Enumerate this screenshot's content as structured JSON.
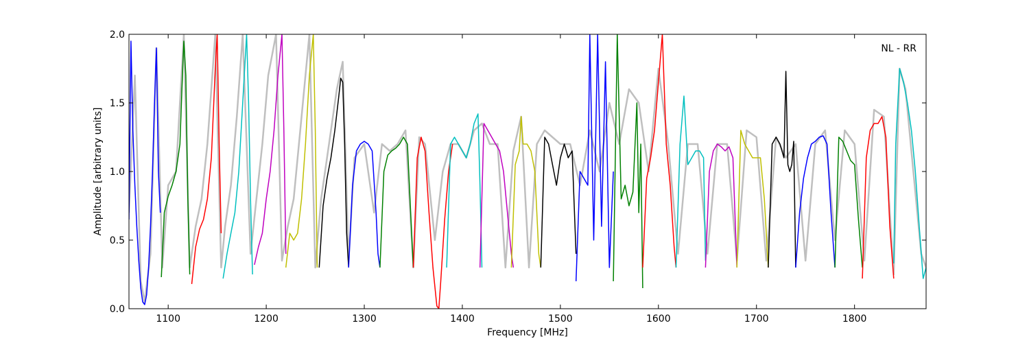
{
  "chart_data": {
    "type": "line",
    "xlabel": "Frequency [MHz]",
    "ylabel": "Amplitude [arbitrary units]",
    "annotation": "NL - RR",
    "xlim": [
      1060,
      1873
    ],
    "ylim": [
      0.0,
      2.0
    ],
    "x_ticks": [
      1100,
      1200,
      1300,
      1400,
      1500,
      1600,
      1700,
      1800
    ],
    "x_tick_labels": [
      "1100",
      "1200",
      "1300",
      "1400",
      "1500",
      "1600",
      "1700",
      "1800"
    ],
    "y_ticks": [
      0.0,
      0.5,
      1.0,
      1.5,
      2.0
    ],
    "y_tick_labels": [
      "0.0",
      "0.5",
      "1.0",
      "1.5",
      "2.0"
    ],
    "grid": false,
    "background_series": {
      "color": "#bfbfbf",
      "x": [
        1060,
        1066,
        1072,
        1076,
        1082,
        1088,
        1094,
        1100,
        1108,
        1116,
        1122,
        1128,
        1134,
        1140,
        1148,
        1154,
        1158,
        1164,
        1170,
        1176,
        1184,
        1190,
        1196,
        1202,
        1210,
        1216,
        1222,
        1228,
        1236,
        1244,
        1250,
        1256,
        1264,
        1272,
        1278,
        1284,
        1290,
        1300,
        1310,
        1318,
        1326,
        1334,
        1342,
        1350,
        1356,
        1362,
        1372,
        1380,
        1388,
        1396,
        1404,
        1412,
        1420,
        1428,
        1436,
        1444,
        1452,
        1460,
        1468,
        1476,
        1484,
        1492,
        1500,
        1510,
        1520,
        1530,
        1540,
        1550,
        1560,
        1570,
        1580,
        1590,
        1600,
        1610,
        1620,
        1630,
        1640,
        1650,
        1660,
        1670,
        1680,
        1690,
        1700,
        1710,
        1720,
        1730,
        1740,
        1750,
        1760,
        1770,
        1780,
        1790,
        1800,
        1810,
        1820,
        1830,
        1840,
        1846,
        1852,
        1860,
        1868,
        1873
      ],
      "y": [
        0.7,
        1.7,
        0.2,
        0.05,
        0.4,
        1.9,
        0.3,
        0.9,
        1.0,
        2.0,
        0.3,
        0.6,
        0.8,
        1.2,
        2.0,
        0.3,
        0.6,
        0.9,
        1.4,
        2.0,
        0.4,
        0.8,
        1.2,
        1.7,
        2.0,
        0.35,
        0.6,
        0.8,
        1.4,
        2.0,
        0.3,
        0.8,
        1.2,
        1.6,
        1.8,
        0.35,
        1.1,
        1.2,
        0.7,
        1.2,
        1.15,
        1.2,
        1.3,
        0.3,
        1.25,
        1.2,
        0.5,
        1.0,
        1.2,
        1.2,
        1.1,
        1.3,
        1.35,
        1.2,
        1.2,
        0.3,
        1.15,
        1.4,
        0.3,
        1.2,
        1.3,
        1.25,
        1.2,
        1.2,
        0.9,
        1.3,
        1.0,
        1.5,
        1.2,
        1.6,
        1.5,
        1.0,
        1.75,
        1.2,
        0.4,
        1.2,
        1.2,
        0.4,
        1.2,
        1.2,
        0.35,
        1.3,
        1.25,
        0.35,
        1.25,
        1.1,
        1.2,
        0.35,
        1.2,
        1.3,
        0.5,
        1.3,
        1.2,
        0.35,
        1.45,
        1.4,
        0.25,
        1.75,
        1.6,
        1.0,
        0.4,
        0.3
      ]
    },
    "series": [
      {
        "color": "#0000ff",
        "x": [
          1060,
          1062,
          1064,
          1066,
          1068,
          1070,
          1072,
          1074,
          1076,
          1078,
          1080,
          1082,
          1084,
          1086,
          1088,
          1090,
          1092
        ],
        "y": [
          0.65,
          1.95,
          1.3,
          0.9,
          0.6,
          0.35,
          0.15,
          0.05,
          0.03,
          0.1,
          0.3,
          0.6,
          1.0,
          1.5,
          1.9,
          1.0,
          0.7
        ]
      },
      {
        "color": "#008000",
        "x": [
          1093,
          1096,
          1100,
          1104,
          1108,
          1112,
          1114,
          1116,
          1118,
          1120,
          1122
        ],
        "y": [
          0.23,
          0.7,
          0.82,
          0.9,
          1.0,
          1.2,
          1.6,
          1.95,
          1.7,
          0.8,
          0.25
        ]
      },
      {
        "color": "#ff0000",
        "x": [
          1124,
          1128,
          1132,
          1136,
          1140,
          1144,
          1148,
          1150,
          1152,
          1154
        ],
        "y": [
          0.18,
          0.45,
          0.58,
          0.65,
          0.8,
          1.1,
          1.75,
          2.0,
          1.2,
          0.55
        ]
      },
      {
        "color": "#00bfbf",
        "x": [
          1156,
          1160,
          1164,
          1168,
          1172,
          1176,
          1180,
          1182,
          1184,
          1186
        ],
        "y": [
          0.22,
          0.4,
          0.55,
          0.7,
          1.0,
          1.5,
          2.0,
          1.5,
          0.8,
          0.25
        ]
      },
      {
        "color": "#bf00bf",
        "x": [
          1188,
          1192,
          1196,
          1200,
          1204,
          1208,
          1212,
          1216,
          1218,
          1220
        ],
        "y": [
          0.32,
          0.45,
          0.55,
          0.8,
          1.0,
          1.3,
          1.7,
          2.0,
          1.3,
          0.4
        ]
      },
      {
        "color": "#bfbf00",
        "x": [
          1220,
          1224,
          1228,
          1232,
          1236,
          1240,
          1244,
          1248,
          1250,
          1252
        ],
        "y": [
          0.3,
          0.55,
          0.5,
          0.55,
          0.8,
          1.2,
          1.7,
          2.0,
          1.3,
          0.3
        ]
      },
      {
        "color": "#000000",
        "x": [
          1254,
          1258,
          1262,
          1266,
          1270,
          1274,
          1276,
          1278,
          1280,
          1282,
          1284
        ],
        "y": [
          0.3,
          0.75,
          0.95,
          1.1,
          1.3,
          1.55,
          1.68,
          1.65,
          1.2,
          0.55,
          0.3
        ]
      },
      {
        "color": "#0000ff",
        "x": [
          1284,
          1288,
          1292,
          1296,
          1300,
          1304,
          1308,
          1312,
          1314,
          1316
        ],
        "y": [
          0.3,
          0.9,
          1.15,
          1.2,
          1.22,
          1.2,
          1.15,
          0.7,
          0.4,
          0.3
        ]
      },
      {
        "color": "#008000",
        "x": [
          1316,
          1320,
          1324,
          1328,
          1332,
          1336,
          1340,
          1344,
          1348,
          1350
        ],
        "y": [
          0.3,
          1.0,
          1.12,
          1.15,
          1.17,
          1.2,
          1.25,
          1.2,
          0.6,
          0.3
        ]
      },
      {
        "color": "#ff0000",
        "x": [
          1350,
          1354,
          1358,
          1362,
          1366,
          1370,
          1374,
          1376,
          1378,
          1382,
          1386,
          1390
        ],
        "y": [
          0.3,
          1.1,
          1.25,
          1.15,
          0.7,
          0.3,
          0.02,
          0.0,
          0.2,
          0.65,
          1.0,
          1.2
        ]
      },
      {
        "color": "#00bfbf",
        "x": [
          1384,
          1388,
          1392,
          1396,
          1400,
          1404,
          1408,
          1412,
          1416,
          1418,
          1420
        ],
        "y": [
          0.3,
          1.2,
          1.25,
          1.2,
          1.15,
          1.1,
          1.2,
          1.35,
          1.42,
          0.9,
          0.3
        ]
      },
      {
        "color": "#bf00bf",
        "x": [
          1418,
          1422,
          1426,
          1430,
          1434,
          1438,
          1442,
          1446,
          1450,
          1452
        ],
        "y": [
          0.3,
          1.35,
          1.3,
          1.25,
          1.2,
          1.15,
          1.0,
          0.7,
          0.4,
          0.3
        ]
      },
      {
        "color": "#bfbf00",
        "x": [
          1450,
          1454,
          1458,
          1460,
          1462,
          1466,
          1470,
          1474,
          1478,
          1480
        ],
        "y": [
          0.3,
          1.05,
          1.15,
          1.4,
          1.2,
          1.2,
          1.15,
          1.0,
          0.4,
          0.3
        ]
      },
      {
        "color": "#000000",
        "x": [
          1480,
          1484,
          1488,
          1492,
          1496,
          1500,
          1504,
          1508,
          1512,
          1516
        ],
        "y": [
          0.3,
          1.25,
          1.2,
          1.05,
          0.9,
          1.1,
          1.2,
          1.1,
          1.15,
          0.4
        ]
      },
      {
        "color": "#0000ff",
        "x": [
          1516,
          1520,
          1524,
          1528,
          1530,
          1534,
          1538,
          1542,
          1546,
          1550,
          1554
        ],
        "y": [
          0.2,
          1.0,
          0.95,
          0.9,
          2.0,
          0.5,
          2.0,
          0.6,
          1.8,
          0.3,
          1.0
        ]
      },
      {
        "color": "#008000",
        "x": [
          1554,
          1558,
          1562,
          1566,
          1570,
          1574,
          1578,
          1580,
          1582,
          1584
        ],
        "y": [
          0.2,
          2.0,
          0.8,
          0.9,
          0.75,
          0.85,
          1.5,
          0.7,
          1.2,
          0.15
        ]
      },
      {
        "color": "#ff0000",
        "x": [
          1584,
          1588,
          1592,
          1596,
          1600,
          1604,
          1608,
          1612,
          1616,
          1618
        ],
        "y": [
          0.3,
          0.95,
          1.1,
          1.3,
          1.65,
          2.0,
          1.2,
          0.9,
          0.45,
          0.3
        ]
      },
      {
        "color": "#00bfbf",
        "x": [
          1618,
          1622,
          1626,
          1630,
          1634,
          1638,
          1642,
          1646,
          1648
        ],
        "y": [
          0.3,
          1.2,
          1.55,
          1.05,
          1.1,
          1.15,
          1.15,
          1.1,
          0.35
        ]
      },
      {
        "color": "#bf00bf",
        "x": [
          1648,
          1652,
          1656,
          1660,
          1664,
          1668,
          1672,
          1676,
          1680
        ],
        "y": [
          0.3,
          1.0,
          1.15,
          1.2,
          1.18,
          1.15,
          1.18,
          1.1,
          0.3
        ]
      },
      {
        "color": "#bfbf00",
        "x": [
          1680,
          1684,
          1688,
          1692,
          1696,
          1700,
          1704,
          1708,
          1712
        ],
        "y": [
          0.3,
          1.3,
          1.2,
          1.15,
          1.1,
          1.1,
          1.1,
          0.8,
          0.3
        ]
      },
      {
        "color": "#000000",
        "x": [
          1712,
          1716,
          1720,
          1724,
          1728,
          1730,
          1732,
          1734,
          1736,
          1738,
          1740
        ],
        "y": [
          0.3,
          1.2,
          1.25,
          1.2,
          1.1,
          1.73,
          1.05,
          1.0,
          1.05,
          1.22,
          0.3
        ]
      },
      {
        "color": "#0000ff",
        "x": [
          1740,
          1744,
          1748,
          1752,
          1756,
          1760,
          1764,
          1768,
          1772,
          1776,
          1780
        ],
        "y": [
          0.3,
          0.7,
          0.95,
          1.1,
          1.2,
          1.22,
          1.25,
          1.26,
          1.2,
          0.7,
          0.3
        ]
      },
      {
        "color": "#008000",
        "x": [
          1780,
          1784,
          1788,
          1792,
          1796,
          1800,
          1804,
          1808
        ],
        "y": [
          0.3,
          1.25,
          1.22,
          1.15,
          1.08,
          1.05,
          0.65,
          0.3
        ]
      },
      {
        "color": "#ff0000",
        "x": [
          1808,
          1812,
          1816,
          1820,
          1824,
          1828,
          1832,
          1836,
          1840
        ],
        "y": [
          0.22,
          1.1,
          1.3,
          1.35,
          1.35,
          1.4,
          1.25,
          0.6,
          0.22
        ]
      },
      {
        "color": "#00bfbf",
        "x": [
          1840,
          1842,
          1846,
          1850,
          1854,
          1858,
          1862,
          1866,
          1870,
          1873
        ],
        "y": [
          0.33,
          1.2,
          1.75,
          1.65,
          1.5,
          1.3,
          1.0,
          0.6,
          0.22,
          0.3
        ]
      }
    ]
  }
}
